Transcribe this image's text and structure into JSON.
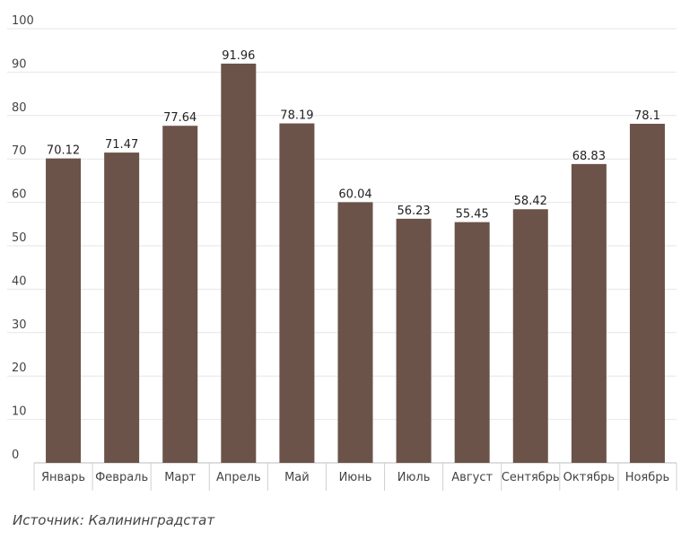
{
  "chart_data": {
    "type": "bar",
    "categories": [
      "Январь",
      "Февраль",
      "Март",
      "Апрель",
      "Май",
      "Июнь",
      "Июль",
      "Август",
      "Сентябрь",
      "Октябрь",
      "Ноябрь"
    ],
    "values": [
      70.12,
      71.47,
      77.64,
      91.96,
      78.19,
      60.04,
      56.23,
      55.45,
      58.42,
      68.83,
      78.1
    ],
    "value_labels": [
      "70.12",
      "71.47",
      "77.64",
      "91.96",
      "78.19",
      "60.04",
      "56.23",
      "55.45",
      "58.42",
      "68.83",
      "78.1"
    ],
    "ylim": [
      0,
      100
    ],
    "yticks": [
      "0",
      "10",
      "20",
      "30",
      "40",
      "50",
      "60",
      "70",
      "80",
      "90",
      "100"
    ],
    "title": "",
    "xlabel": "",
    "ylabel": "",
    "grid": true,
    "legend": "none",
    "bar_color": "#6b5349",
    "grid_color": "#e6e6e6"
  },
  "source_note": "Источник: Калининградстат"
}
